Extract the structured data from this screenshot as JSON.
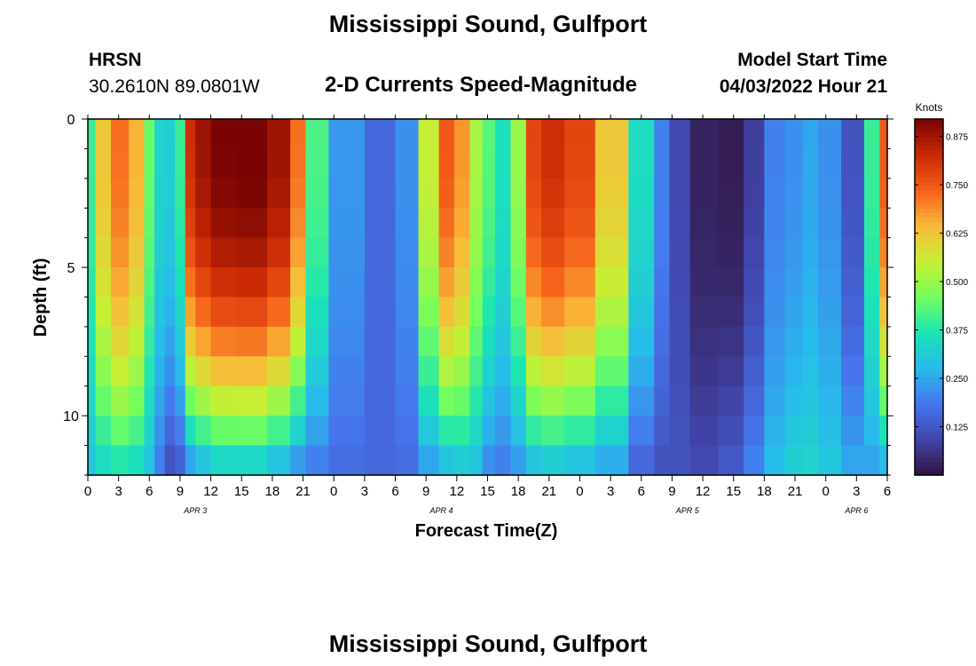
{
  "title": "Mississippi Sound, Gulfport",
  "footer_title": "Mississippi Sound, Gulfport",
  "station": {
    "code": "HRSN",
    "coords": "30.2610N  89.0801W"
  },
  "model_start": {
    "label": "Model Start Time",
    "value": "04/03/2022 Hour 21"
  },
  "chart_data": {
    "type": "heatmap",
    "title": "2-D Currents Speed-Magnitude",
    "xlabel": "Forecast Time(Z)",
    "ylabel": "Depth (ft)",
    "x_tick_labels": [
      "0",
      "3",
      "6",
      "9",
      "12",
      "15",
      "18",
      "21",
      "0",
      "3",
      "6",
      "9",
      "12",
      "15",
      "18",
      "21",
      "0",
      "3",
      "6",
      "9",
      "12",
      "15",
      "18",
      "21",
      "0",
      "3",
      "6"
    ],
    "date_labels": [
      {
        "label": "APR 3",
        "tick_index": 3.5
      },
      {
        "label": "APR 4",
        "tick_index": 11.5
      },
      {
        "label": "APR 5",
        "tick_index": 19.5
      },
      {
        "label": "APR 6",
        "tick_index": 25.0
      }
    ],
    "x_range_hours": [
      0,
      78
    ],
    "y_range_ft": [
      0,
      12
    ],
    "y_ticks": [
      0,
      5,
      10
    ],
    "y_inverted": true,
    "colorbar": {
      "label": "Knots",
      "ticks": [
        0.125,
        0.25,
        0.375,
        0.5,
        0.625,
        0.75,
        0.875
      ],
      "tick_labels": [
        "0.125",
        "0.250",
        "0.375",
        "0.500",
        "0.625",
        "0.750",
        "0.875"
      ],
      "range": [
        0.0,
        0.92
      ]
    },
    "time_hours": [
      0,
      1.5,
      3,
      5,
      6,
      7,
      8,
      9,
      10,
      11,
      13,
      16,
      19,
      20.5,
      22,
      25,
      29,
      31,
      33.5,
      35,
      36.5,
      38,
      39,
      40.5,
      42,
      43.5,
      45,
      48,
      51,
      54.5,
      56,
      57.5,
      60,
      63,
      65,
      67,
      69,
      70.5,
      72,
      75,
      76.5,
      78
    ],
    "depth_ft": [
      0.5,
      1.5,
      2.5,
      3.5,
      4.5,
      5.5,
      6.5,
      7.5,
      8.5,
      9.5,
      10.5,
      11.5
    ],
    "surface_speed_knots": [
      0.4,
      0.62,
      0.72,
      0.65,
      0.45,
      0.33,
      0.32,
      0.4,
      0.82,
      0.88,
      0.92,
      0.93,
      0.88,
      0.72,
      0.42,
      0.23,
      0.16,
      0.22,
      0.55,
      0.75,
      0.68,
      0.52,
      0.43,
      0.36,
      0.5,
      0.78,
      0.82,
      0.78,
      0.62,
      0.35,
      0.2,
      0.1,
      0.03,
      0.02,
      0.08,
      0.2,
      0.22,
      0.25,
      0.22,
      0.12,
      0.4,
      0.75
    ],
    "bottom_speed_knots": [
      0.3,
      0.35,
      0.38,
      0.36,
      0.3,
      0.2,
      0.12,
      0.15,
      0.25,
      0.3,
      0.34,
      0.34,
      0.3,
      0.24,
      0.2,
      0.17,
      0.16,
      0.17,
      0.25,
      0.3,
      0.32,
      0.3,
      0.22,
      0.2,
      0.24,
      0.3,
      0.32,
      0.3,
      0.26,
      0.16,
      0.12,
      0.12,
      0.1,
      0.13,
      0.2,
      0.28,
      0.32,
      0.33,
      0.3,
      0.25,
      0.25,
      0.28
    ]
  }
}
